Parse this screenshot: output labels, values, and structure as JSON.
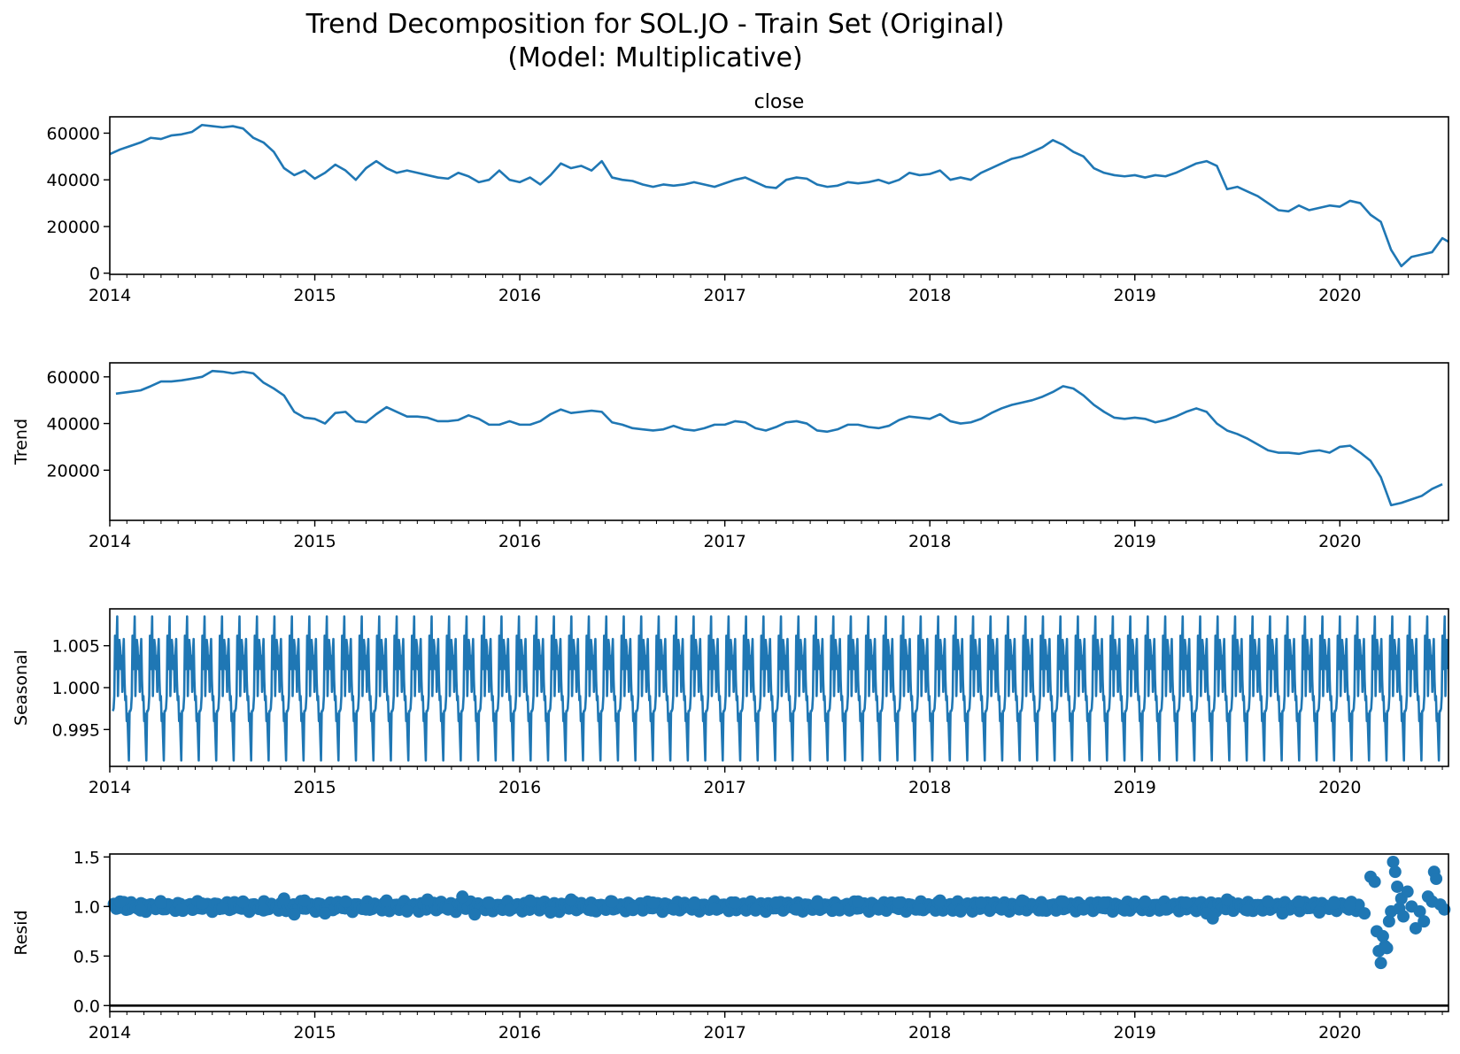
{
  "title_line1": "Trend Decomposition for SOL.JO - Train Set (Original)",
  "title_line2": "(Model: Multiplicative)",
  "color": "#1f77b4",
  "xticks": [
    "2014",
    "2015",
    "2016",
    "2017",
    "2018",
    "2019",
    "2020"
  ],
  "chart_data": [
    {
      "type": "line",
      "name": "close",
      "title": "close",
      "ylabel": "",
      "xlim": [
        2014.0,
        2020.53
      ],
      "ylim": [
        -500,
        67000
      ],
      "yticks": [
        0,
        20000,
        40000,
        60000
      ],
      "ytick_labels": [
        "0",
        "20000",
        "40000",
        "60000"
      ],
      "x": [
        2014.0,
        2014.05,
        2014.1,
        2014.15,
        2014.2,
        2014.25,
        2014.3,
        2014.35,
        2014.4,
        2014.45,
        2014.5,
        2014.55,
        2014.6,
        2014.65,
        2014.7,
        2014.75,
        2014.8,
        2014.85,
        2014.9,
        2014.95,
        2015.0,
        2015.05,
        2015.1,
        2015.15,
        2015.2,
        2015.25,
        2015.3,
        2015.35,
        2015.4,
        2015.45,
        2015.5,
        2015.55,
        2015.6,
        2015.65,
        2015.7,
        2015.75,
        2015.8,
        2015.85,
        2015.9,
        2015.95,
        2016.0,
        2016.05,
        2016.1,
        2016.15,
        2016.2,
        2016.25,
        2016.3,
        2016.35,
        2016.4,
        2016.45,
        2016.5,
        2016.55,
        2016.6,
        2016.65,
        2016.7,
        2016.75,
        2016.8,
        2016.85,
        2016.9,
        2016.95,
        2017.0,
        2017.05,
        2017.1,
        2017.15,
        2017.2,
        2017.25,
        2017.3,
        2017.35,
        2017.4,
        2017.45,
        2017.5,
        2017.55,
        2017.6,
        2017.65,
        2017.7,
        2017.75,
        2017.8,
        2017.85,
        2017.9,
        2017.95,
        2018.0,
        2018.05,
        2018.1,
        2018.15,
        2018.2,
        2018.25,
        2018.3,
        2018.35,
        2018.4,
        2018.45,
        2018.5,
        2018.55,
        2018.6,
        2018.65,
        2018.7,
        2018.75,
        2018.8,
        2018.85,
        2018.9,
        2018.95,
        2019.0,
        2019.05,
        2019.1,
        2019.15,
        2019.2,
        2019.25,
        2019.3,
        2019.35,
        2019.4,
        2019.45,
        2019.5,
        2019.55,
        2019.6,
        2019.65,
        2019.7,
        2019.75,
        2019.8,
        2019.85,
        2019.9,
        2019.95,
        2020.0,
        2020.05,
        2020.1,
        2020.15,
        2020.2,
        2020.25,
        2020.3,
        2020.35,
        2020.4,
        2020.45,
        2020.5,
        2020.53
      ],
      "y": [
        51000,
        53000,
        54500,
        56000,
        58000,
        57500,
        59000,
        59500,
        60500,
        63500,
        63000,
        62500,
        63000,
        62000,
        58000,
        56000,
        52000,
        45000,
        42000,
        44000,
        40500,
        43000,
        46500,
        44000,
        40000,
        45000,
        48000,
        45000,
        43000,
        44000,
        43000,
        42000,
        41000,
        40500,
        43000,
        41500,
        39000,
        40000,
        44000,
        40000,
        39000,
        41000,
        38000,
        42000,
        47000,
        45000,
        46000,
        44000,
        48000,
        41000,
        40000,
        39500,
        38000,
        37000,
        38000,
        37500,
        38000,
        39000,
        38000,
        37000,
        38500,
        40000,
        41000,
        39000,
        37000,
        36500,
        40000,
        41000,
        40500,
        38000,
        37000,
        37500,
        39000,
        38500,
        39000,
        40000,
        38500,
        40000,
        43000,
        42000,
        42500,
        44000,
        40000,
        41000,
        40000,
        43000,
        45000,
        47000,
        49000,
        50000,
        52000,
        54000,
        57000,
        55000,
        52000,
        50000,
        45000,
        43000,
        42000,
        41500,
        42000,
        41000,
        42000,
        41500,
        43000,
        45000,
        47000,
        48000,
        46000,
        36000,
        37000,
        35000,
        33000,
        30000,
        27000,
        26500,
        29000,
        27000,
        28000,
        29000,
        28500,
        31000,
        30000,
        25000,
        22000,
        10000,
        3000,
        7000,
        8000,
        9000,
        15000,
        13500
      ]
    },
    {
      "type": "line",
      "name": "Trend",
      "title": "",
      "ylabel": "Trend",
      "xlim": [
        2014.0,
        2020.53
      ],
      "ylim": [
        -1500,
        66000
      ],
      "yticks": [
        20000,
        40000,
        60000
      ],
      "ytick_labels": [
        "20000",
        "40000",
        "60000"
      ],
      "x": [
        2014.03,
        2014.1,
        2014.15,
        2014.2,
        2014.25,
        2014.3,
        2014.35,
        2014.4,
        2014.45,
        2014.5,
        2014.55,
        2014.6,
        2014.65,
        2014.7,
        2014.75,
        2014.8,
        2014.85,
        2014.9,
        2014.95,
        2015.0,
        2015.05,
        2015.1,
        2015.15,
        2015.2,
        2015.25,
        2015.3,
        2015.35,
        2015.4,
        2015.45,
        2015.5,
        2015.55,
        2015.6,
        2015.65,
        2015.7,
        2015.75,
        2015.8,
        2015.85,
        2015.9,
        2015.95,
        2016.0,
        2016.05,
        2016.1,
        2016.15,
        2016.2,
        2016.25,
        2016.3,
        2016.35,
        2016.4,
        2016.45,
        2016.5,
        2016.55,
        2016.6,
        2016.65,
        2016.7,
        2016.75,
        2016.8,
        2016.85,
        2016.9,
        2016.95,
        2017.0,
        2017.05,
        2017.1,
        2017.15,
        2017.2,
        2017.25,
        2017.3,
        2017.35,
        2017.4,
        2017.45,
        2017.5,
        2017.55,
        2017.6,
        2017.65,
        2017.7,
        2017.75,
        2017.8,
        2017.85,
        2017.9,
        2017.95,
        2018.0,
        2018.05,
        2018.1,
        2018.15,
        2018.2,
        2018.25,
        2018.3,
        2018.35,
        2018.4,
        2018.45,
        2018.5,
        2018.55,
        2018.6,
        2018.65,
        2018.7,
        2018.75,
        2018.8,
        2018.85,
        2018.9,
        2018.95,
        2019.0,
        2019.05,
        2019.1,
        2019.15,
        2019.2,
        2019.25,
        2019.3,
        2019.35,
        2019.4,
        2019.45,
        2019.5,
        2019.55,
        2019.6,
        2019.65,
        2019.7,
        2019.75,
        2019.8,
        2019.85,
        2019.9,
        2019.95,
        2020.0,
        2020.05,
        2020.1,
        2020.15,
        2020.2,
        2020.25,
        2020.3,
        2020.35,
        2020.4,
        2020.45,
        2020.5
      ],
      "y": [
        52800,
        53600,
        54200,
        56000,
        58000,
        58000,
        58500,
        59200,
        60000,
        62500,
        62200,
        61500,
        62200,
        61500,
        57500,
        55000,
        52000,
        45000,
        42500,
        42000,
        40000,
        44500,
        45000,
        41000,
        40500,
        44000,
        47000,
        45000,
        43000,
        43000,
        42500,
        41000,
        41000,
        41500,
        43500,
        42000,
        39500,
        39500,
        41000,
        39500,
        39500,
        41000,
        44000,
        46000,
        44500,
        45000,
        45500,
        45000,
        40500,
        39500,
        38000,
        37500,
        37000,
        37500,
        39000,
        37500,
        37000,
        38000,
        39500,
        39500,
        41000,
        40500,
        38000,
        37000,
        38500,
        40500,
        41000,
        40000,
        37000,
        36500,
        37500,
        39500,
        39500,
        38500,
        38000,
        39000,
        41500,
        43000,
        42500,
        42000,
        44000,
        41000,
        40000,
        40500,
        42000,
        44500,
        46500,
        48000,
        49000,
        50000,
        51500,
        53500,
        56000,
        55000,
        52000,
        48000,
        45000,
        42500,
        42000,
        42500,
        42000,
        40500,
        41500,
        43000,
        45000,
        46500,
        45000,
        40000,
        37000,
        35500,
        33500,
        31000,
        28500,
        27500,
        27500,
        27000,
        28000,
        28500,
        27500,
        30000,
        30500,
        27500,
        24000,
        17000,
        5000,
        6000,
        7500,
        9000,
        12000,
        14000
      ]
    },
    {
      "type": "line",
      "name": "Seasonal",
      "title": "",
      "ylabel": "Seasonal",
      "xlim": [
        2014.0,
        2020.53
      ],
      "ylim": [
        0.9906,
        1.0094
      ],
      "yticks": [
        0.995,
        1.0,
        1.005
      ],
      "ytick_labels": [
        "0.995",
        "1.000",
        "1.005"
      ],
      "period_years": 0.0852,
      "start_x": 2014.015,
      "end_x": 2020.53,
      "pattern": [
        0.9972,
        0.9975,
        0.999,
        1.0062,
        1.0022,
        1.0048,
        1.0085,
        0.999,
        1.003,
        1.0057,
        1.0048,
        1.0022,
        1.0038,
        0.9995,
        1.004,
        1.0058,
        1.001,
        0.9985,
        0.999,
        0.996,
        0.9969,
        0.994,
        0.9913,
        0.9972
      ]
    },
    {
      "type": "scatter",
      "name": "Resid",
      "title": "",
      "ylabel": "Resid",
      "xlim": [
        2014.0,
        2020.53
      ],
      "ylim": [
        -0.06,
        1.53
      ],
      "yticks": [
        0.0,
        0.5,
        1.0,
        1.5
      ],
      "ytick_labels": [
        "0.0",
        "0.5",
        "1.0",
        "1.5"
      ],
      "baseline": 0.0,
      "x": [
        2014.05,
        2014.15,
        2014.25,
        2014.35,
        2014.45,
        2014.55,
        2014.65,
        2014.75,
        2014.85,
        2014.9,
        2014.95,
        2015.05,
        2015.15,
        2015.25,
        2015.35,
        2015.45,
        2015.55,
        2015.65,
        2015.72,
        2015.78,
        2015.85,
        2015.95,
        2016.05,
        2016.15,
        2016.25,
        2016.35,
        2016.45,
        2016.55,
        2016.65,
        2016.75,
        2016.85,
        2016.95,
        2017.05,
        2017.15,
        2017.25,
        2017.35,
        2017.45,
        2017.55,
        2017.65,
        2017.75,
        2017.85,
        2017.95,
        2018.05,
        2018.15,
        2018.25,
        2018.35,
        2018.45,
        2018.55,
        2018.65,
        2018.75,
        2018.85,
        2018.95,
        2019.05,
        2019.15,
        2019.25,
        2019.35,
        2019.38,
        2019.45,
        2019.55,
        2019.65,
        2019.72,
        2019.8,
        2019.9,
        2019.97,
        2020.05,
        2020.12,
        2020.15,
        2020.17,
        2020.18,
        2020.19,
        2020.2,
        2020.21,
        2020.22,
        2020.23,
        2020.24,
        2020.25,
        2020.26,
        2020.27,
        2020.28,
        2020.29,
        2020.3,
        2020.31,
        2020.33,
        2020.35,
        2020.37,
        2020.39,
        2020.41,
        2020.43,
        2020.45,
        2020.46,
        2020.47,
        2020.49,
        2020.51
      ],
      "y": [
        1.05,
        0.96,
        1.04,
        0.97,
        1.03,
        0.98,
        1.05,
        0.96,
        1.08,
        0.92,
        1.06,
        0.93,
        1.05,
        0.97,
        1.06,
        0.95,
        1.07,
        0.97,
        1.1,
        0.92,
        1.04,
        0.96,
        1.06,
        0.94,
        1.07,
        0.96,
        1.05,
        0.98,
        1.04,
        0.97,
        1.03,
        0.98,
        1.04,
        0.96,
        1.04,
        0.97,
        1.03,
        0.98,
        1.05,
        0.97,
        1.04,
        0.97,
        1.06,
        0.95,
        1.04,
        0.97,
        1.06,
        0.96,
        1.05,
        0.97,
        1.04,
        0.96,
        1.05,
        0.97,
        1.04,
        0.93,
        0.88,
        1.07,
        0.96,
        1.05,
        0.93,
        1.05,
        0.94,
        1.03,
        1.02,
        0.93,
        1.3,
        1.25,
        0.75,
        0.55,
        0.43,
        0.7,
        0.6,
        0.58,
        0.85,
        0.95,
        1.45,
        1.35,
        1.2,
        0.98,
        1.08,
        0.9,
        1.15,
        1.0,
        0.78,
        0.95,
        0.85,
        1.1,
        1.05,
        1.35,
        1.28,
        1.02,
        0.97
      ]
    }
  ]
}
